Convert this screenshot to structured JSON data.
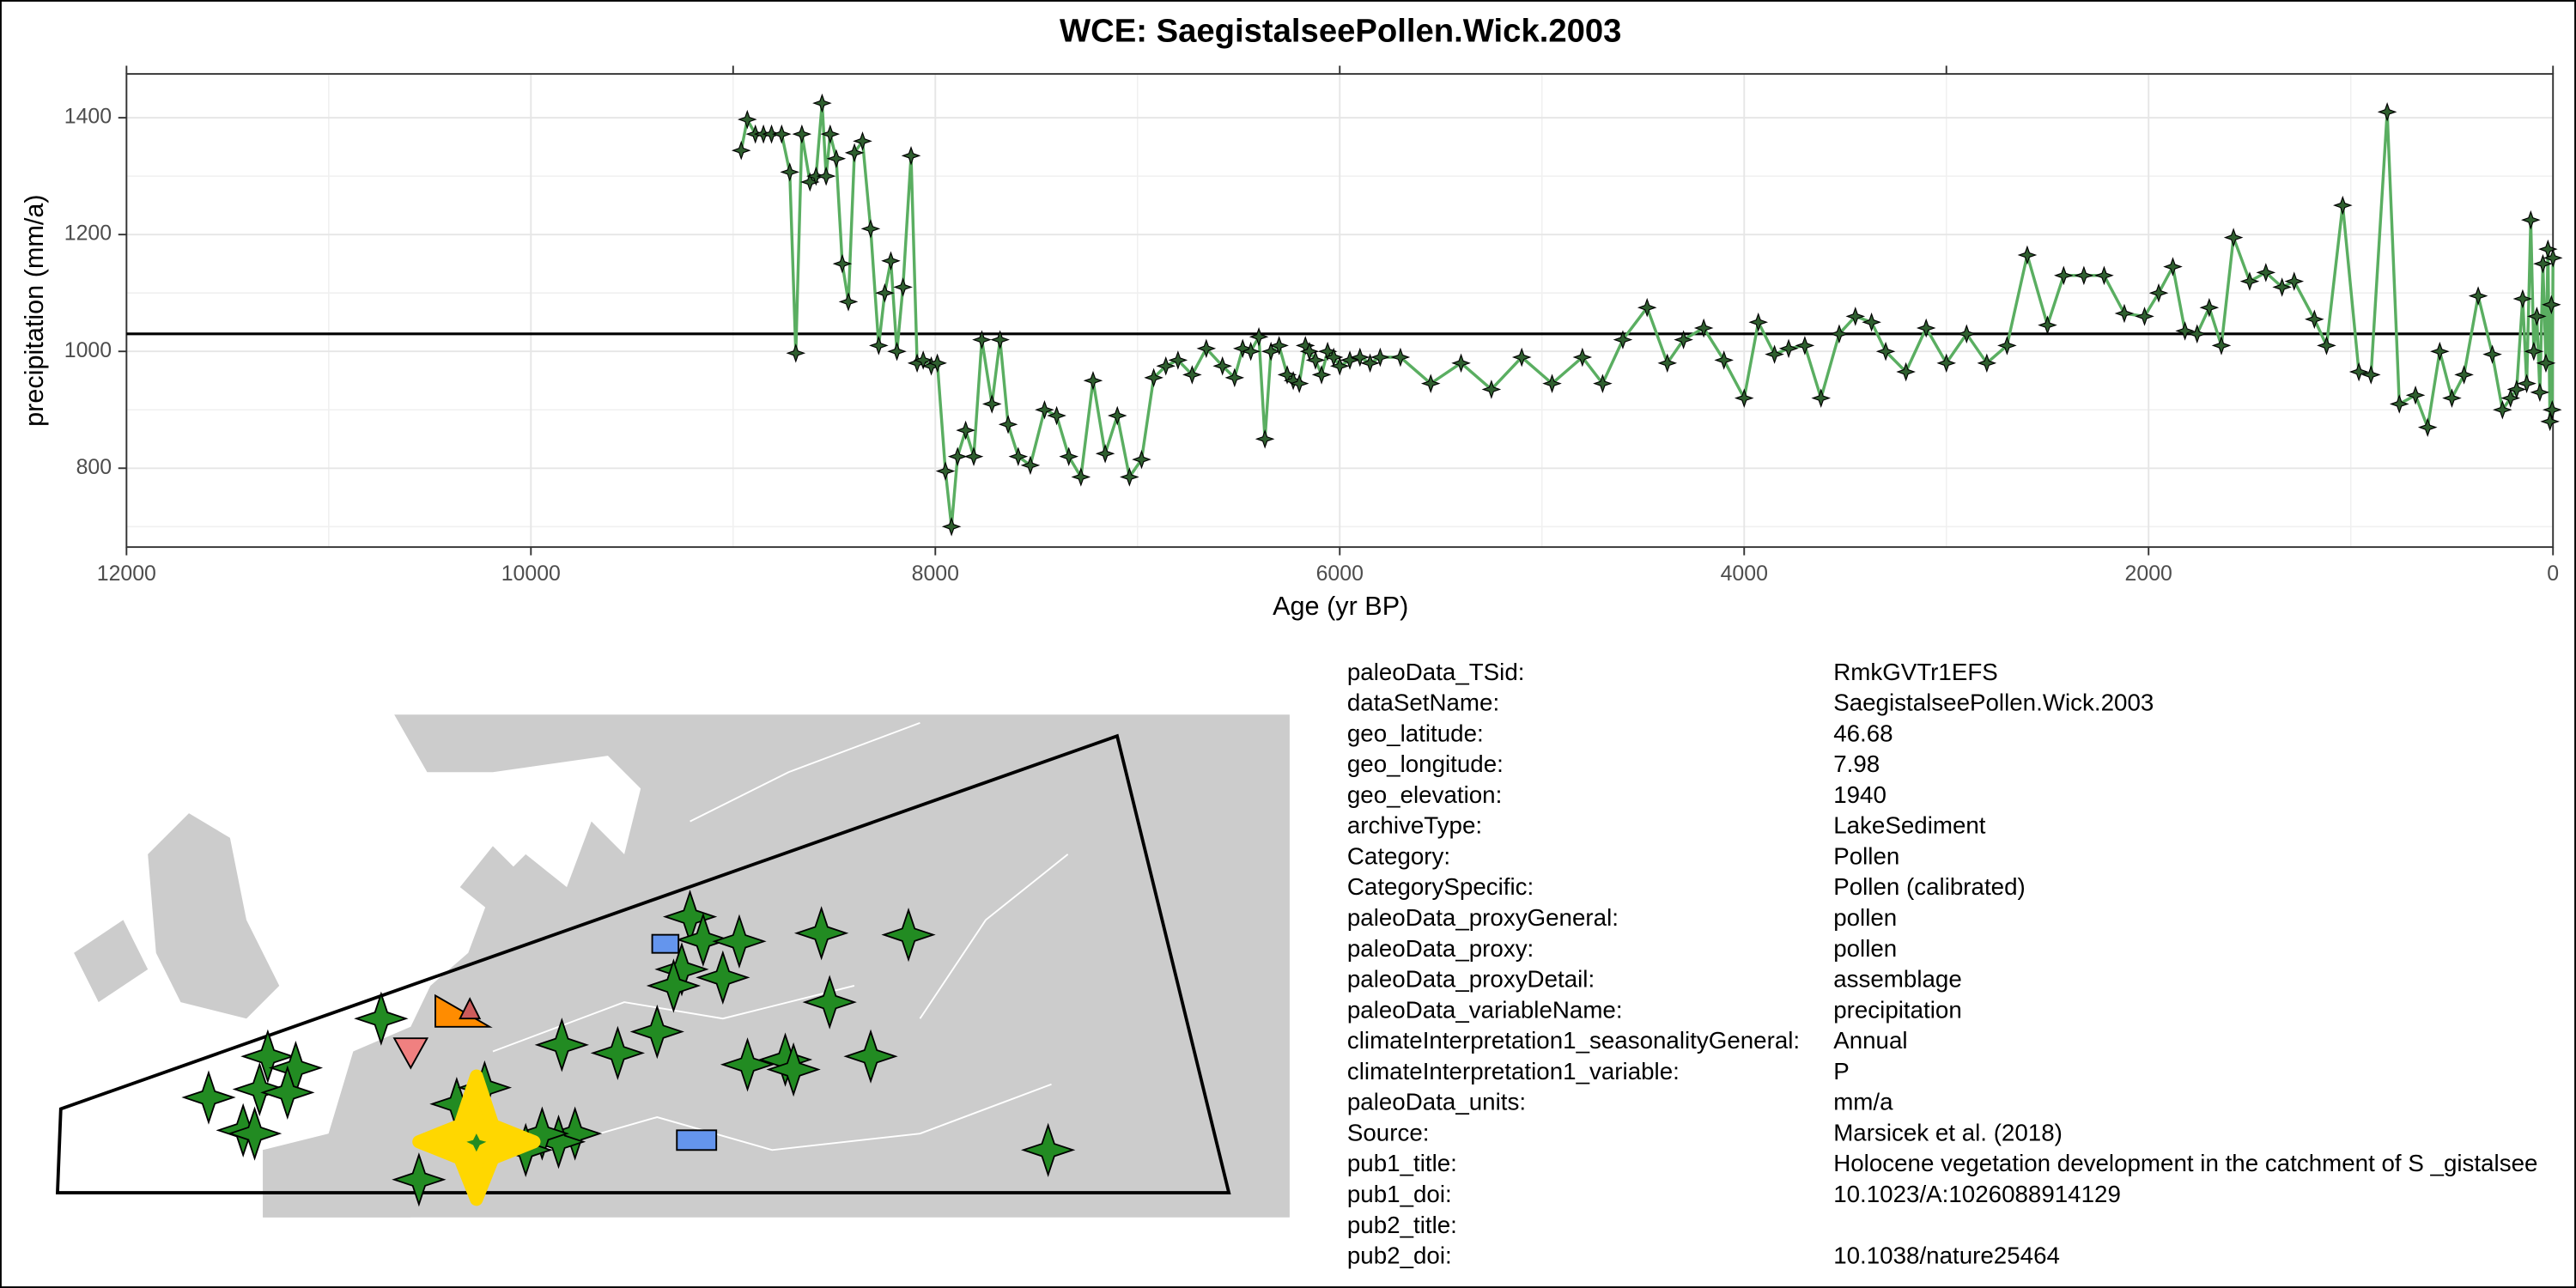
{
  "chart_data": {
    "type": "line",
    "title": "WCE: SaegistalseePollen.Wick.2003",
    "x_label": "Age (yr BP)",
    "y_label": "precipitation (mm/a)",
    "x": [
      8960,
      8930,
      8890,
      8850,
      8810,
      8760,
      8720,
      8690,
      8660,
      8620,
      8590,
      8560,
      8540,
      8520,
      8490,
      8460,
      8430,
      8400,
      8360,
      8320,
      8280,
      8250,
      8220,
      8190,
      8160,
      8120,
      8090,
      8060,
      8020,
      7990,
      7950,
      7920,
      7890,
      7850,
      7810,
      7770,
      7720,
      7680,
      7640,
      7590,
      7530,
      7460,
      7400,
      7340,
      7280,
      7220,
      7160,
      7100,
      7040,
      6980,
      6920,
      6860,
      6800,
      6730,
      6660,
      6580,
      6520,
      6480,
      6440,
      6400,
      6370,
      6340,
      6300,
      6260,
      6230,
      6200,
      6170,
      6150,
      6120,
      6090,
      6060,
      6030,
      6000,
      5950,
      5900,
      5850,
      5800,
      5700,
      5550,
      5400,
      5250,
      5100,
      4950,
      4800,
      4700,
      4600,
      4480,
      4380,
      4300,
      4200,
      4100,
      4000,
      3930,
      3850,
      3780,
      3700,
      3620,
      3530,
      3450,
      3370,
      3300,
      3200,
      3100,
      3000,
      2900,
      2800,
      2700,
      2600,
      2500,
      2420,
      2320,
      2220,
      2120,
      2020,
      1950,
      1880,
      1820,
      1760,
      1700,
      1640,
      1580,
      1500,
      1420,
      1340,
      1280,
      1180,
      1120,
      1040,
      960,
      900,
      820,
      760,
      680,
      620,
      560,
      500,
      440,
      370,
      300,
      250,
      210,
      180,
      150,
      130,
      110,
      95,
      80,
      65,
      50,
      35,
      25,
      15,
      8,
      4,
      0
    ],
    "values": [
      1344,
      1397,
      1372,
      1372,
      1372,
      1372,
      1307,
      997,
      1372,
      1290,
      1300,
      1425,
      1300,
      1372,
      1330,
      1150,
      1085,
      1340,
      1360,
      1210,
      1010,
      1100,
      1155,
      1000,
      1110,
      1335,
      980,
      985,
      975,
      980,
      795,
      700,
      820,
      865,
      820,
      1020,
      910,
      1020,
      875,
      820,
      805,
      900,
      890,
      820,
      785,
      950,
      825,
      890,
      785,
      815,
      955,
      975,
      985,
      960,
      1005,
      975,
      955,
      1005,
      1000,
      1025,
      850,
      1000,
      1010,
      960,
      950,
      945,
      1010,
      1000,
      985,
      960,
      1000,
      990,
      975,
      985,
      990,
      980,
      990,
      990,
      945,
      980,
      935,
      990,
      945,
      990,
      945,
      1020,
      1075,
      980,
      1020,
      1040,
      985,
      920,
      1050,
      995,
      1005,
      1010,
      920,
      1030,
      1060,
      1050,
      1000,
      965,
      1040,
      980,
      1030,
      980,
      1010,
      1165,
      1045,
      1130,
      1130,
      1130,
      1065,
      1060,
      1100,
      1145,
      1035,
      1030,
      1075,
      1010,
      1195,
      1120,
      1135,
      1110,
      1120,
      1055,
      1010,
      1250,
      965,
      960,
      1410,
      910,
      925,
      870,
      1000,
      920,
      960,
      1095,
      995,
      900,
      920,
      935,
      1090,
      945,
      1225,
      1000,
      1060,
      930,
      1150,
      980,
      1175,
      880,
      1080,
      900,
      1160
    ],
    "color": "#5aae61",
    "marker_color": "#2f5f2f",
    "xlim": [
      12000,
      0
    ],
    "ylim": [
      665,
      1475
    ],
    "xticks": [
      12000,
      10000,
      8000,
      6000,
      4000,
      2000,
      0
    ],
    "x2ticks": [
      12000,
      9000,
      6000,
      3000,
      0
    ],
    "yticks": [
      800,
      1000,
      1200,
      1400
    ],
    "reference_line": 1030,
    "grid": true
  },
  "metadata": {
    "rows": [
      {
        "key": "paleoData_TSid:",
        "value": "RmkGVTr1EFS"
      },
      {
        "key": "dataSetName:",
        "value": "SaegistalseePollen.Wick.2003"
      },
      {
        "key": "geo_latitude:",
        "value": "46.68"
      },
      {
        "key": "geo_longitude:",
        "value": "7.98"
      },
      {
        "key": "geo_elevation:",
        "value": "1940"
      },
      {
        "key": "archiveType:",
        "value": "LakeSediment"
      },
      {
        "key": "Category:",
        "value": "Pollen"
      },
      {
        "key": "CategorySpecific:",
        "value": "Pollen (calibrated)"
      },
      {
        "key": "paleoData_proxyGeneral:",
        "value": "pollen"
      },
      {
        "key": "paleoData_proxy:",
        "value": "pollen"
      },
      {
        "key": "paleoData_proxyDetail:",
        "value": "assemblage"
      },
      {
        "key": "paleoData_variableName:",
        "value": "precipitation"
      },
      {
        "key": "climateInterpretation1_seasonalityGeneral:",
        "value": "Annual"
      },
      {
        "key": "climateInterpretation1_variable:",
        "value": "P"
      },
      {
        "key": "paleoData_units:",
        "value": "mm/a"
      },
      {
        "key": "Source:",
        "value": "Marsicek et al. (2018)"
      },
      {
        "key": "pub1_title:",
        "value": "Holocene vegetation development in the catchment of S _gistalsee"
      },
      {
        "key": "pub1_doi:",
        "value": "10.1023/A:1026088914129"
      },
      {
        "key": "pub2_title:"
      },
      {
        "key": "pub2_doi:",
        "value": "10.1038/nature25464"
      }
    ]
  }
}
